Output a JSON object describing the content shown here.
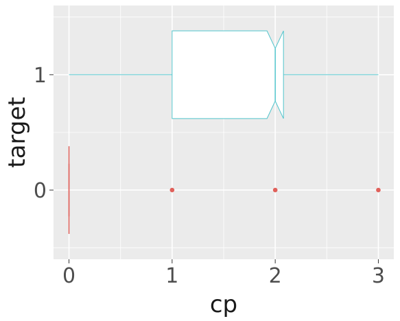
{
  "chart_data": {
    "type": "boxplot",
    "orientation": "horizontal",
    "xlabel": "cp",
    "ylabel": "target",
    "x_ticks": [
      0,
      1,
      2,
      3
    ],
    "y_categories": [
      "0",
      "1"
    ],
    "xlim": [
      -0.15,
      3.15
    ],
    "grid": true,
    "notched": true,
    "background": "#ebebeb",
    "series": [
      {
        "category": "0",
        "color": "#e0605a",
        "min": 0,
        "q1": 0,
        "median": 0,
        "q3": 0,
        "max": 0,
        "notch_low": 0,
        "notch_high": 0,
        "outliers": [
          1,
          2,
          3
        ]
      },
      {
        "category": "1",
        "color": "#4fc4cc",
        "min": 0,
        "q1": 1,
        "median": 2,
        "q3": 2,
        "max": 3,
        "notch_low": 1.92,
        "notch_high": 2.08,
        "outliers": []
      }
    ]
  }
}
